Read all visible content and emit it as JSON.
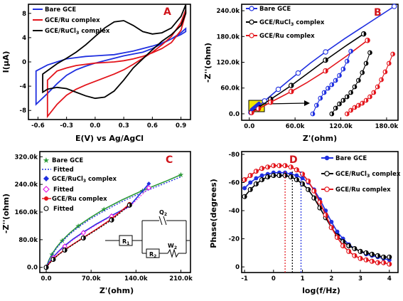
{
  "colors": {
    "blue": "#1f2fe0",
    "red": "#e3141b",
    "black": "#000000",
    "green": "#2d9a3a",
    "magenta": "#e61ce6",
    "panel_label": "#d0141b"
  },
  "chart_data": [
    {
      "panel": "A",
      "type": "line",
      "xlabel": "E(V) vs Ag/AgCl",
      "ylabel": "I(μA)",
      "xlim": [
        -0.7,
        1.0
      ],
      "ylim": [
        -9.5,
        9.5
      ],
      "xticks": [
        -0.6,
        -0.3,
        0.0,
        0.3,
        0.6,
        0.9
      ],
      "xtick_labels": [
        "-0.6",
        "-0.3",
        "0.0",
        "0.3",
        "0.6",
        "0.9"
      ],
      "yticks": [
        -8,
        -4,
        0,
        4,
        8
      ],
      "ytick_labels": [
        "-8",
        "-4",
        "0",
        "4",
        "8"
      ],
      "legend": "top-left",
      "series": [
        {
          "name": "Bare GCE",
          "color": "#1f2fe0",
          "x": [
            -0.62,
            -0.5,
            -0.4,
            -0.3,
            -0.2,
            -0.1,
            0.0,
            0.1,
            0.2,
            0.3,
            0.4,
            0.5,
            0.6,
            0.7,
            0.8,
            0.9,
            0.95,
            0.95,
            0.9,
            0.8,
            0.7,
            0.6,
            0.5,
            0.4,
            0.3,
            0.2,
            0.1,
            0.0,
            -0.1,
            -0.2,
            -0.3,
            -0.4,
            -0.5,
            -0.62
          ],
          "y": [
            -1.5,
            -0.5,
            0.0,
            0.5,
            0.7,
            0.9,
            1.0,
            1.1,
            1.2,
            1.5,
            1.8,
            2.2,
            2.6,
            3.1,
            3.8,
            4.8,
            5.5,
            5.0,
            4.5,
            3.8,
            3.0,
            2.2,
            1.6,
            1.3,
            1.0,
            0.6,
            0.2,
            -0.2,
            -0.7,
            -1.3,
            -2.2,
            -3.6,
            -5.2,
            -7.0
          ]
        },
        {
          "name": "GCE/Ru complex",
          "color": "#e3141b",
          "x": [
            -0.5,
            -0.4,
            -0.3,
            -0.2,
            -0.1,
            0.0,
            0.1,
            0.2,
            0.3,
            0.4,
            0.5,
            0.6,
            0.7,
            0.8,
            0.9,
            0.95,
            0.95,
            0.9,
            0.8,
            0.7,
            0.6,
            0.5,
            0.4,
            0.3,
            0.2,
            0.1,
            0.0,
            -0.1,
            -0.2,
            -0.3,
            -0.4,
            -0.5
          ],
          "y": [
            -3.0,
            -1.5,
            -1.0,
            -0.6,
            -0.4,
            -0.2,
            -0.1,
            0.0,
            0.2,
            0.5,
            0.9,
            1.5,
            2.2,
            3.2,
            5.2,
            8.0,
            8.6,
            6.5,
            4.2,
            2.8,
            1.6,
            0.6,
            -0.4,
            -1.3,
            -2.0,
            -2.6,
            -3.2,
            -3.8,
            -4.5,
            -5.5,
            -7.0,
            -9.0
          ]
        },
        {
          "name": "GCE/RuCl3 complex",
          "color": "#000000",
          "x": [
            -0.55,
            -0.4,
            -0.3,
            -0.2,
            -0.1,
            0.0,
            0.1,
            0.2,
            0.3,
            0.4,
            0.5,
            0.6,
            0.7,
            0.8,
            0.9,
            0.95,
            0.95,
            0.9,
            0.8,
            0.7,
            0.6,
            0.5,
            0.4,
            0.3,
            0.2,
            0.1,
            0.0,
            -0.1,
            -0.2,
            -0.3,
            -0.4,
            -0.5,
            -0.55
          ],
          "y": [
            -2.0,
            -0.3,
            0.6,
            1.6,
            2.8,
            4.2,
            5.6,
            6.6,
            6.8,
            6.0,
            5.0,
            4.6,
            4.8,
            5.6,
            7.5,
            9.4,
            8.0,
            6.0,
            4.5,
            3.4,
            2.0,
            0.5,
            -1.0,
            -3.0,
            -4.8,
            -5.8,
            -6.0,
            -5.6,
            -5.0,
            -4.4,
            -4.2,
            -4.5,
            -5.0
          ]
        }
      ]
    },
    {
      "panel": "B",
      "type": "scatter",
      "xlabel": "Z'(ohm)",
      "ylabel": "-Z''(ohm)",
      "xlim": [
        -10000,
        195000
      ],
      "ylim": [
        -15000,
        255000
      ],
      "xticks": [
        0,
        60000,
        120000,
        180000
      ],
      "xtick_labels": [
        "0.0",
        "60.0k",
        "120.0k",
        "180.0k"
      ],
      "yticks": [
        0,
        60000,
        120000,
        180000,
        240000
      ],
      "ytick_labels": [
        "0.0",
        "60.0k",
        "120.0k",
        "180.0k",
        "240.0k"
      ],
      "legend": "top-left",
      "series": [
        {
          "name": "Bare GCE",
          "color": "#1f2fe0",
          "x": [
            0,
            2000,
            5000,
            9000,
            14000,
            20000,
            28000,
            38000,
            50000,
            64000,
            80000,
            100000,
            125000,
            190000
          ],
          "y": [
            0,
            3000,
            7000,
            13000,
            20000,
            30000,
            42000,
            57000,
            75000,
            95000,
            118000,
            144000,
            175000,
            250000
          ]
        },
        {
          "name": "GCE/RuCl3 complex",
          "color": "#000000",
          "x": [
            0,
            3000,
            7000,
            12000,
            19000,
            28000,
            40000,
            55000,
            75000,
            100000,
            128000,
            150000
          ],
          "y": [
            0,
            4000,
            9000,
            15000,
            23000,
            34000,
            48000,
            66000,
            92000,
            125000,
            160000,
            186000
          ]
        },
        {
          "name": "GCE/Ru complex",
          "color": "#e3141b",
          "x": [
            0,
            3000,
            7000,
            12000,
            19000,
            28000,
            40000,
            55000,
            75000,
            100000,
            128000,
            155000
          ],
          "y": [
            0,
            3000,
            7000,
            12000,
            18000,
            27000,
            38000,
            52000,
            72000,
            100000,
            135000,
            171000
          ]
        }
      ],
      "inset": {
        "series": [
          {
            "name": "Bare GCE",
            "color": "#1f2fe0",
            "x": [
              0,
              1,
              2,
              3,
              4,
              5,
              6,
              7,
              8,
              9,
              10
            ],
            "y": [
              0,
              1.2,
              2.2,
              3.0,
              3.6,
              4.1,
              4.7,
              5.4,
              6.3,
              7.4,
              8.8
            ]
          },
          {
            "name": "GCE/RuCl3 complex",
            "color": "#000000",
            "x": [
              1,
              2,
              3,
              4,
              5,
              6,
              7,
              8,
              9,
              10,
              11
            ],
            "y": [
              0,
              0.8,
              1.4,
              1.9,
              2.4,
              3.0,
              3.8,
              4.7,
              5.8,
              7.1,
              8.6
            ]
          },
          {
            "name": "GCE/Ru complex",
            "color": "#e3141b",
            "x": [
              1,
              2,
              3,
              4,
              5,
              6,
              7,
              8,
              9,
              10,
              11,
              12,
              13
            ],
            "y": [
              0,
              0.5,
              0.9,
              1.2,
              1.5,
              1.9,
              2.4,
              3.0,
              3.8,
              4.8,
              5.9,
              7.1,
              8.4
            ]
          }
        ]
      }
    },
    {
      "panel": "C",
      "type": "scatter",
      "xlabel": "Z'(ohm)",
      "ylabel": "-Z''(ohm)",
      "xlim": [
        -10000,
        225000
      ],
      "ylim": [
        -15000,
        335000
      ],
      "xticks": [
        0,
        70000,
        140000,
        210000
      ],
      "xtick_labels": [
        "0.0",
        "70.0k",
        "140.0k",
        "210.0k"
      ],
      "yticks": [
        0,
        80000,
        160000,
        240000,
        320000
      ],
      "ytick_labels": [
        "0.0",
        "80.0k",
        "160.0k",
        "240.0k",
        "320.0k"
      ],
      "legend": "top-left",
      "series": [
        {
          "name": "Bare GCE",
          "color": "#2d9a3a",
          "x": [
            0,
            4000,
            9000,
            16000,
            25000,
            36000,
            50000,
            68000,
            90000,
            118000,
            150000,
            185000,
            210000
          ],
          "y": [
            0,
            20000,
            38000,
            58000,
            78000,
            98000,
            120000,
            143000,
            168000,
            195000,
            222000,
            248000,
            268000
          ]
        },
        {
          "name": "Fitted",
          "color": "#1f2fe0",
          "x": [
            0,
            4000,
            9000,
            16000,
            25000,
            36000,
            50000,
            68000,
            90000,
            118000,
            150000,
            185000,
            210000
          ],
          "y": [
            0,
            19000,
            36000,
            55000,
            75000,
            95000,
            116000,
            139000,
            163000,
            190000,
            217000,
            243000,
            262000
          ]
        },
        {
          "name": "GCE/RuCl3 complex",
          "color": "#1f2fe0",
          "x": [
            0,
            5000,
            11000,
            19000,
            29000,
            42000,
            58000,
            78000,
            102000,
            130000,
            160000
          ],
          "y": [
            0,
            15000,
            30000,
            46000,
            63000,
            82000,
            102000,
            125000,
            150000,
            177000,
            242000
          ]
        },
        {
          "name": "Fitted",
          "color": "#e61ce6",
          "x": [
            0,
            5000,
            11000,
            19000,
            29000,
            42000,
            58000,
            78000,
            102000,
            130000,
            160000
          ],
          "y": [
            0,
            14000,
            28000,
            44000,
            61000,
            80000,
            100000,
            123000,
            148000,
            175000,
            230000
          ]
        },
        {
          "name": "GCE/Ru complex",
          "color": "#e3141b",
          "x": [
            0,
            5000,
            11000,
            19000,
            29000,
            42000,
            58000,
            78000,
            102000,
            130000
          ],
          "y": [
            0,
            12000,
            24000,
            37000,
            51000,
            67000,
            86000,
            110000,
            140000,
            183000
          ]
        },
        {
          "name": "Fitted",
          "color": "#000000",
          "x": [
            0,
            5000,
            11000,
            19000,
            29000,
            42000,
            58000,
            78000,
            102000,
            130000
          ],
          "y": [
            0,
            11000,
            23000,
            36000,
            50000,
            66000,
            85000,
            108000,
            137000,
            180000
          ]
        }
      ],
      "circuit": {
        "labels": [
          "R1",
          "R2",
          "Q2",
          "W2"
        ]
      }
    },
    {
      "panel": "D",
      "type": "line",
      "xlabel": "log(f/Hz)",
      "ylabel": "Phase(degrees)",
      "xlim": [
        -1.1,
        4.3
      ],
      "ylim": [
        4,
        -82
      ],
      "xticks": [
        -1,
        0,
        1,
        2,
        3,
        4
      ],
      "xtick_labels": [
        "-1",
        "0",
        "1",
        "2",
        "3",
        "4"
      ],
      "yticks": [
        -80,
        -60,
        -40,
        -20,
        0
      ],
      "ytick_labels": [
        "-80",
        "-60",
        "-40",
        "-20",
        "0"
      ],
      "legend": "top-right",
      "series": [
        {
          "name": "Bare GCE",
          "color": "#1f2fe0",
          "x": [
            -1,
            -0.8,
            -0.6,
            -0.4,
            -0.2,
            0,
            0.2,
            0.4,
            0.6,
            0.8,
            1.0,
            1.2,
            1.4,
            1.6,
            1.8,
            2.0,
            2.2,
            2.4,
            2.6,
            2.8,
            3.0,
            3.2,
            3.4,
            3.6,
            3.8,
            4.0
          ],
          "y": [
            -56,
            -60,
            -63,
            -65,
            -66,
            -67,
            -67,
            -67,
            -66,
            -65,
            -63,
            -60,
            -55,
            -48,
            -40,
            -32,
            -25,
            -20,
            -16,
            -13,
            -11,
            -9,
            -8,
            -7,
            -6,
            -5
          ]
        },
        {
          "name": "GCE/RuCl3 complex",
          "color": "#000000",
          "x": [
            -1,
            -0.8,
            -0.6,
            -0.4,
            -0.2,
            0,
            0.2,
            0.4,
            0.6,
            0.8,
            1.0,
            1.2,
            1.4,
            1.6,
            1.8,
            2.0,
            2.2,
            2.4,
            2.6,
            2.8,
            3.0,
            3.2,
            3.4,
            3.6,
            3.8,
            4.0
          ],
          "y": [
            -50,
            -55,
            -59,
            -62,
            -64,
            -65,
            -65,
            -65,
            -64,
            -62,
            -59,
            -55,
            -49,
            -42,
            -35,
            -28,
            -22,
            -18,
            -15,
            -13,
            -11,
            -10,
            -9,
            -8,
            -7,
            -7
          ]
        },
        {
          "name": "GCE/Ru complex",
          "color": "#e3141b",
          "x": [
            -1,
            -0.8,
            -0.6,
            -0.4,
            -0.2,
            0,
            0.2,
            0.4,
            0.6,
            0.8,
            1.0,
            1.2,
            1.4,
            1.6,
            1.8,
            2.0,
            2.2,
            2.4,
            2.6,
            2.8,
            3.0,
            3.2,
            3.4,
            3.6,
            3.8,
            4.0
          ],
          "y": [
            -62,
            -65,
            -68,
            -70,
            -71,
            -72,
            -72,
            -72,
            -71,
            -69,
            -66,
            -61,
            -54,
            -46,
            -37,
            -28,
            -21,
            -15,
            -11,
            -8,
            -6,
            -5,
            -4,
            -3,
            -3,
            -2
          ]
        }
      ],
      "markers_x": [
        0.4,
        0.65,
        0.95
      ]
    }
  ]
}
